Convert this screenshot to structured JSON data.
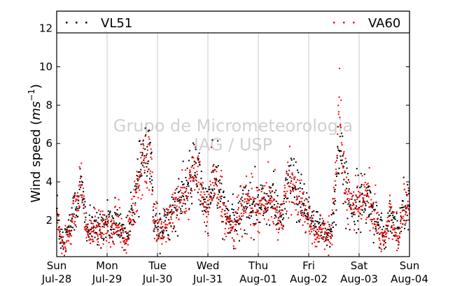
{
  "chart_data": {
    "type": "scatter",
    "title": "",
    "ylabel": "Wind speed (ms⁻¹)",
    "ylabel_main": "Wind speed (",
    "ylabel_unit": "ms",
    "ylabel_exp": "−1",
    "ylabel_close": ")",
    "xlim": [
      0,
      7
    ],
    "ylim": [
      0.1,
      12.9
    ],
    "yticks": [
      2,
      4,
      6,
      8,
      10,
      12
    ],
    "xticks": [
      {
        "pos": 0,
        "day": "Sun",
        "date": "Jul-28"
      },
      {
        "pos": 1,
        "day": "Mon",
        "date": "Jul-29"
      },
      {
        "pos": 2,
        "day": "Tue",
        "date": "Jul-30"
      },
      {
        "pos": 3,
        "day": "Wed",
        "date": "Jul-31"
      },
      {
        "pos": 4,
        "day": "Thu",
        "date": "Aug-01"
      },
      {
        "pos": 5,
        "day": "Fri",
        "date": "Aug-02"
      },
      {
        "pos": 6,
        "day": "Sat",
        "date": "Aug-03"
      },
      {
        "pos": 7,
        "day": "Sun",
        "date": "Aug-04"
      }
    ],
    "grid": "vertical",
    "legend": "top",
    "watermark": [
      "Grupo de Micrometeorologia",
      "IAG / USP"
    ],
    "series": [
      {
        "name": "VL51",
        "color": "#000000",
        "profile": [
          [
            0.0,
            2.8
          ],
          [
            0.06,
            1.3
          ],
          [
            0.15,
            1.0
          ],
          [
            0.25,
            1.5
          ],
          [
            0.32,
            2.3
          ],
          [
            0.4,
            2.8
          ],
          [
            0.48,
            3.8
          ],
          [
            0.55,
            2.5
          ],
          [
            0.62,
            1.5
          ],
          [
            0.7,
            1.6
          ],
          [
            0.8,
            1.5
          ],
          [
            0.9,
            1.8
          ],
          [
            1.0,
            1.8
          ],
          [
            1.1,
            1.7
          ],
          [
            1.2,
            1.8
          ],
          [
            1.3,
            1.5
          ],
          [
            1.4,
            1.3
          ],
          [
            1.48,
            2.0
          ],
          [
            1.55,
            3.0
          ],
          [
            1.62,
            4.0
          ],
          [
            1.68,
            5.0
          ],
          [
            1.75,
            5.2
          ],
          [
            1.82,
            5.0
          ],
          [
            1.88,
            4.5
          ],
          [
            1.92,
            2.5
          ],
          [
            2.0,
            1.8
          ],
          [
            2.1,
            1.5
          ],
          [
            2.2,
            2.0
          ],
          [
            2.3,
            2.5
          ],
          [
            2.4,
            2.8
          ],
          [
            2.5,
            3.2
          ],
          [
            2.6,
            3.5
          ],
          [
            2.66,
            4.2
          ],
          [
            2.72,
            4.5
          ],
          [
            2.78,
            4.5
          ],
          [
            2.85,
            4.0
          ],
          [
            2.92,
            3.0
          ],
          [
            3.0,
            2.5
          ],
          [
            3.05,
            3.5
          ],
          [
            3.12,
            4.0
          ],
          [
            3.18,
            4.0
          ],
          [
            3.25,
            3.2
          ],
          [
            3.32,
            2.5
          ],
          [
            3.4,
            2.2
          ],
          [
            3.48,
            1.8
          ],
          [
            3.55,
            1.9
          ],
          [
            3.62,
            2.2
          ],
          [
            3.7,
            2.8
          ],
          [
            3.78,
            3.0
          ],
          [
            3.85,
            2.8
          ],
          [
            3.92,
            2.7
          ],
          [
            4.0,
            2.8
          ],
          [
            4.1,
            2.8
          ],
          [
            4.18,
            2.9
          ],
          [
            4.25,
            3.2
          ],
          [
            4.32,
            2.8
          ],
          [
            4.4,
            2.3
          ],
          [
            4.48,
            2.2
          ],
          [
            4.55,
            3.5
          ],
          [
            4.62,
            4.0
          ],
          [
            4.7,
            3.8
          ],
          [
            4.78,
            3.2
          ],
          [
            4.85,
            3.0
          ],
          [
            4.92,
            2.5
          ],
          [
            5.0,
            2.2
          ],
          [
            5.08,
            1.8
          ],
          [
            5.15,
            1.5
          ],
          [
            5.22,
            1.8
          ],
          [
            5.3,
            1.5
          ],
          [
            5.38,
            1.2
          ],
          [
            5.45,
            1.5
          ],
          [
            5.52,
            3.0
          ],
          [
            5.58,
            5.5
          ],
          [
            5.62,
            6.0
          ],
          [
            5.68,
            4.5
          ],
          [
            5.75,
            3.5
          ],
          [
            5.82,
            2.8
          ],
          [
            5.9,
            2.8
          ],
          [
            6.0,
            3.0
          ],
          [
            6.1,
            3.2
          ],
          [
            6.18,
            3.0
          ],
          [
            6.25,
            2.8
          ],
          [
            6.32,
            2.0
          ],
          [
            6.4,
            1.5
          ],
          [
            6.48,
            1.2
          ],
          [
            6.55,
            1.5
          ],
          [
            6.62,
            2.5
          ],
          [
            6.68,
            2.0
          ],
          [
            6.75,
            1.5
          ],
          [
            6.82,
            1.8
          ],
          [
            6.88,
            3.0
          ],
          [
            6.95,
            3.0
          ],
          [
            7.0,
            2.8
          ]
        ]
      },
      {
        "name": "VA60",
        "color": "#ff0000",
        "profile": [
          [
            0.0,
            2.5
          ],
          [
            0.06,
            1.0
          ],
          [
            0.15,
            0.8
          ],
          [
            0.25,
            1.2
          ],
          [
            0.32,
            2.0
          ],
          [
            0.4,
            2.6
          ],
          [
            0.48,
            3.6
          ],
          [
            0.55,
            2.3
          ],
          [
            0.62,
            1.3
          ],
          [
            0.7,
            1.5
          ],
          [
            0.8,
            1.4
          ],
          [
            0.9,
            1.7
          ],
          [
            1.0,
            1.6
          ],
          [
            1.1,
            1.6
          ],
          [
            1.2,
            1.7
          ],
          [
            1.3,
            1.3
          ],
          [
            1.4,
            1.1
          ],
          [
            1.48,
            1.8
          ],
          [
            1.55,
            2.8
          ],
          [
            1.62,
            3.8
          ],
          [
            1.68,
            5.0
          ],
          [
            1.75,
            5.3
          ],
          [
            1.82,
            5.1
          ],
          [
            1.88,
            4.6
          ],
          [
            1.92,
            2.3
          ],
          [
            2.0,
            1.6
          ],
          [
            2.1,
            1.3
          ],
          [
            2.2,
            1.9
          ],
          [
            2.3,
            2.4
          ],
          [
            2.4,
            2.7
          ],
          [
            2.5,
            3.1
          ],
          [
            2.6,
            3.4
          ],
          [
            2.66,
            4.0
          ],
          [
            2.72,
            4.4
          ],
          [
            2.78,
            4.3
          ],
          [
            2.85,
            3.8
          ],
          [
            2.92,
            2.8
          ],
          [
            3.0,
            2.2
          ],
          [
            3.05,
            3.3
          ],
          [
            3.12,
            3.9
          ],
          [
            3.18,
            3.9
          ],
          [
            3.25,
            3.0
          ],
          [
            3.32,
            2.3
          ],
          [
            3.4,
            2.0
          ],
          [
            3.48,
            1.6
          ],
          [
            3.55,
            1.7
          ],
          [
            3.62,
            2.0
          ],
          [
            3.7,
            2.7
          ],
          [
            3.78,
            2.9
          ],
          [
            3.85,
            2.7
          ],
          [
            3.92,
            2.6
          ],
          [
            4.0,
            2.7
          ],
          [
            4.1,
            2.7
          ],
          [
            4.18,
            2.8
          ],
          [
            4.25,
            3.1
          ],
          [
            4.32,
            2.7
          ],
          [
            4.4,
            2.1
          ],
          [
            4.48,
            2.0
          ],
          [
            4.55,
            3.4
          ],
          [
            4.62,
            3.9
          ],
          [
            4.7,
            3.7
          ],
          [
            4.78,
            3.1
          ],
          [
            4.85,
            2.9
          ],
          [
            4.92,
            2.3
          ],
          [
            5.0,
            2.0
          ],
          [
            5.08,
            1.6
          ],
          [
            5.15,
            1.3
          ],
          [
            5.22,
            1.6
          ],
          [
            5.3,
            1.3
          ],
          [
            5.38,
            1.0
          ],
          [
            5.45,
            1.3
          ],
          [
            5.52,
            3.2
          ],
          [
            5.58,
            6.0
          ],
          [
            5.62,
            7.0
          ],
          [
            5.68,
            5.0
          ],
          [
            5.75,
            3.3
          ],
          [
            5.82,
            2.6
          ],
          [
            5.9,
            2.7
          ],
          [
            6.0,
            2.9
          ],
          [
            6.1,
            3.1
          ],
          [
            6.18,
            2.9
          ],
          [
            6.25,
            2.6
          ],
          [
            6.32,
            1.8
          ],
          [
            6.4,
            1.3
          ],
          [
            6.48,
            1.0
          ],
          [
            6.55,
            1.4
          ],
          [
            6.62,
            2.4
          ],
          [
            6.68,
            1.8
          ],
          [
            6.75,
            1.3
          ],
          [
            6.82,
            1.6
          ],
          [
            6.88,
            2.9
          ],
          [
            6.95,
            2.9
          ],
          [
            7.0,
            2.7
          ]
        ]
      }
    ]
  }
}
